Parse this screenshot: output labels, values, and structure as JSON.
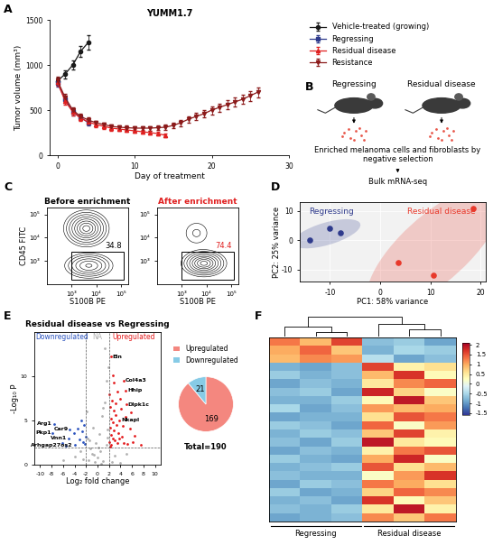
{
  "panel_labels": [
    "A",
    "B",
    "C",
    "D",
    "E",
    "F"
  ],
  "diagram": {
    "groups": [
      "Regressing",
      "Residual disease"
    ],
    "process": "Enriched melanoma cells and fibroblasts by negative selection",
    "readout": "Bulk mRNA-seq"
  },
  "chart_data": [
    {
      "type": "line",
      "title": "YUMM1.7",
      "xlabel": "Day of treatment",
      "ylabel": "Tumor volume (mm³)",
      "xlim": [
        -1,
        30
      ],
      "xticks": [
        0,
        10,
        20,
        30
      ],
      "ylim": [
        0,
        1500
      ],
      "yticks": [
        0,
        500,
        1000,
        1500
      ],
      "legend": "upper left",
      "series": [
        {
          "name": "Vehicle-treated (growing)",
          "color": "#1a1a1a",
          "marker": "o",
          "x": [
            0,
            1,
            2,
            3,
            4
          ],
          "values": [
            820,
            900,
            1000,
            1150,
            1250
          ],
          "errors": [
            40,
            45,
            50,
            60,
            80
          ]
        },
        {
          "name": "Regressing",
          "color": "#2e3a8c",
          "marker": "s",
          "x": [
            0,
            1,
            2,
            3,
            4
          ],
          "values": [
            800,
            620,
            480,
            420,
            360
          ],
          "errors": [
            40,
            40,
            35,
            30,
            30
          ]
        },
        {
          "name": "Residual disease",
          "color": "#e02020",
          "marker": "^",
          "x": [
            0,
            1,
            2,
            3,
            4,
            5,
            6,
            7,
            8,
            9,
            10,
            11,
            12,
            13,
            14
          ],
          "values": [
            810,
            600,
            480,
            410,
            370,
            340,
            320,
            300,
            290,
            280,
            270,
            260,
            250,
            240,
            220
          ],
          "errors": [
            40,
            40,
            35,
            30,
            30,
            25,
            25,
            25,
            20,
            20,
            20,
            20,
            20,
            20,
            20
          ]
        },
        {
          "name": "Resistance",
          "color": "#8b1a1a",
          "marker": "v",
          "x": [
            0,
            1,
            2,
            3,
            4,
            5,
            6,
            7,
            8,
            9,
            10,
            11,
            12,
            13,
            14,
            15,
            16,
            17,
            18,
            19,
            20,
            21,
            22,
            23,
            24,
            25,
            26
          ],
          "values": [
            830,
            640,
            500,
            430,
            390,
            360,
            340,
            320,
            310,
            305,
            300,
            300,
            300,
            305,
            310,
            330,
            360,
            400,
            430,
            460,
            500,
            530,
            560,
            590,
            620,
            660,
            700
          ],
          "errors": [
            40,
            40,
            35,
            30,
            30,
            25,
            25,
            25,
            25,
            25,
            25,
            25,
            25,
            25,
            30,
            30,
            35,
            35,
            40,
            40,
            45,
            45,
            50,
            50,
            50,
            55,
            55
          ]
        }
      ]
    },
    {
      "type": "contour",
      "title": "Before enrichment",
      "color": "#000000",
      "xlabel": "S100B PE",
      "ylabel": "CD45 FITC",
      "xlim": [
        2,
        5.3
      ],
      "ylim": [
        2,
        5.3
      ],
      "xticks": [
        {
          "value": 3,
          "label": "10³"
        },
        {
          "value": 4,
          "label": "10⁴"
        },
        {
          "value": 5,
          "label": "10⁵"
        }
      ],
      "yticks": [
        {
          "value": 3,
          "label": "10³"
        },
        {
          "value": 4,
          "label": "10⁴"
        },
        {
          "value": 5,
          "label": "10⁵"
        }
      ],
      "populations": [
        {
          "center": [
            3.6,
            4.4
          ],
          "spread": [
            0.35,
            0.3
          ],
          "weight": 1.0
        },
        {
          "center": [
            3.7,
            2.8
          ],
          "spread": [
            0.4,
            0.22
          ],
          "weight": 0.6
        }
      ],
      "gate": {
        "x": [
          3.0,
          5.1
        ],
        "y": [
          2.2,
          3.4
        ],
        "value": 34.8
      }
    },
    {
      "type": "contour",
      "title": "After enrichment",
      "color": "#e02020",
      "xlabel": "S100B PE",
      "xlim": [
        2,
        5.3
      ],
      "ylim": [
        2,
        5.3
      ],
      "xticks": [
        {
          "value": 3,
          "label": "10³"
        },
        {
          "value": 4,
          "label": "10⁴"
        },
        {
          "value": 5,
          "label": "10⁵"
        }
      ],
      "yticks": [
        {
          "value": 3,
          "label": "10³"
        },
        {
          "value": 4,
          "label": "10⁴"
        },
        {
          "value": 5,
          "label": "10⁵"
        }
      ],
      "populations": [
        {
          "center": [
            3.9,
            2.9
          ],
          "spread": [
            0.35,
            0.22
          ],
          "weight": 1.0
        },
        {
          "center": [
            3.6,
            4.2
          ],
          "spread": [
            0.3,
            0.3
          ],
          "weight": 0.08
        }
      ],
      "gate": {
        "x": [
          3.0,
          5.1
        ],
        "y": [
          2.2,
          3.4
        ],
        "value": 74.4
      }
    },
    {
      "type": "scatter",
      "xlabel": "PC1: 58% variance",
      "ylabel": "PC2: 25% variance",
      "xlim": [
        -16,
        21
      ],
      "xticks": [
        -10,
        0,
        10,
        20
      ],
      "ylim": [
        -14,
        13
      ],
      "yticks": [
        -10,
        0,
        10
      ],
      "series": [
        {
          "name": "Regressing",
          "color": "#2e3a8c",
          "x": [
            -14,
            -10,
            -8
          ],
          "values": [
            0,
            4.2,
            2.5
          ]
        },
        {
          "name": "Residual disease",
          "color": "#e8392b",
          "x": [
            3.5,
            10.5,
            18.5
          ],
          "values": [
            -7.5,
            -12,
            11
          ]
        }
      ]
    },
    {
      "type": "volcano",
      "title": "Residual disease vs Regressing",
      "xlabel": "Log₂ fold change",
      "ylabel": "-Log₁₀ P",
      "xlim": [
        -11,
        11
      ],
      "xticks": [
        -10,
        -8,
        -6,
        -4,
        -2,
        0,
        2,
        4,
        6,
        8,
        10
      ],
      "ylim": [
        0,
        15
      ],
      "yticks": [
        0,
        5,
        10
      ],
      "cutoffs": {
        "x": [
          -2,
          2
        ],
        "y": 1.9
      },
      "series": [
        {
          "name": "Downregulated",
          "color": "#2a52be",
          "x": [
            -7.6,
            -7.8,
            -4.8,
            -5.0,
            -4.0,
            -2.3,
            -2.6,
            -3.1,
            -2.2,
            -5.5,
            -2.8,
            -3.4,
            -2.5,
            -6.2,
            -2.1,
            -4.1
          ],
          "values": [
            4.6,
            3.6,
            4.0,
            3.0,
            2.2,
            4.5,
            3.8,
            2.9,
            2.3,
            2.1,
            5.0,
            4.1,
            2.6,
            2.4,
            3.2,
            3.6
          ]
        },
        {
          "name": "NA",
          "color": "#b0b0b0",
          "x": [
            -1.5,
            -1.0,
            -0.5,
            0.0,
            0.5,
            1.0,
            1.5,
            -1.8,
            1.8,
            0.8,
            -0.3,
            1.2,
            0.3,
            -1.2,
            1.6,
            -0.8,
            0.6,
            -2.5,
            3.0,
            -4.0,
            5.0,
            -6.0,
            1.9,
            -1.9,
            0.2,
            2.5,
            -3.0,
            4.0,
            1.3,
            -1.4,
            0.9,
            -0.6,
            1.7
          ],
          "values": [
            0.5,
            1.2,
            0.3,
            0.8,
            1.5,
            0.4,
            2.2,
            3.0,
            4.0,
            5.5,
            2.5,
            7.0,
            3.5,
            1.8,
            9.5,
            4.2,
            0.1,
            0.6,
            1.0,
            0.9,
            1.2,
            0.5,
            11.0,
            6.0,
            1.9,
            0.3,
            1.5,
            0.2,
            13.2,
            2.8,
            6.4,
            1.1,
            3.1
          ]
        },
        {
          "name": "Upregulated",
          "color": "#e41a1c",
          "x": [
            2.3,
            4.6,
            4.9,
            5.0,
            3.8,
            2.1,
            2.5,
            2.2,
            2.8,
            3.1,
            2.4,
            2.6,
            3.3,
            2.2,
            2.9,
            3.6,
            2.3,
            4.2,
            2.7,
            3.0,
            2.1,
            3.5,
            4.5,
            5.2,
            2.4,
            6.1,
            3.9,
            4.1,
            2.9,
            3.4,
            5.6,
            6.4,
            4.8,
            7.5,
            2.6,
            3.2,
            2.2,
            3.7,
            5.8,
            4.4
          ],
          "values": [
            12.2,
            9.5,
            8.4,
            6.8,
            5.0,
            8.0,
            7.2,
            6.5,
            6.1,
            5.6,
            5.2,
            4.8,
            4.5,
            4.2,
            3.9,
            3.6,
            3.4,
            3.2,
            3.0,
            2.8,
            2.6,
            2.5,
            2.4,
            2.3,
            2.2,
            2.6,
            7.5,
            6.3,
            9.3,
            8.3,
            4.1,
            3.3,
            5.4,
            2.2,
            10.1,
            6.9,
            2.0,
            3.0,
            5.9,
            4.4
          ]
        }
      ],
      "annotations": [
        {
          "text": "Eln",
          "x": 2.3,
          "y": 12.2
        },
        {
          "text": "Col4a3",
          "x": 4.6,
          "y": 9.5
        },
        {
          "text": "Hhip",
          "x": 4.9,
          "y": 8.4
        },
        {
          "text": "Dlpk1c",
          "x": 5.0,
          "y": 6.8
        },
        {
          "text": "Nkapl",
          "x": 3.8,
          "y": 5.0
        },
        {
          "text": "Arg1",
          "x": -7.6,
          "y": 4.6
        },
        {
          "text": "Pkp1",
          "x": -7.8,
          "y": 3.6
        },
        {
          "text": "Car9",
          "x": -4.8,
          "y": 4.0
        },
        {
          "text": "Vnn1",
          "x": -5.0,
          "y": 3.0
        },
        {
          "text": "Arhgap27os2",
          "x": -4.0,
          "y": 2.2
        }
      ]
    },
    {
      "type": "pie",
      "categories": [
        "Upregulated",
        "Downregulated"
      ],
      "values": [
        169,
        21
      ],
      "colors": [
        "#f4877f",
        "#87cbe6"
      ],
      "data_labels": true,
      "legend": "lower center",
      "note": "Total=190"
    },
    {
      "type": "heatmap",
      "tick_labels": false,
      "groups": [
        {
          "name": "Regressing",
          "columns": 3
        },
        {
          "name": "Residual disease",
          "columns": 3
        }
      ],
      "dendrogram": [
        [
          1,
          2,
          1.0
        ],
        [
          0,
          6,
          2.0
        ],
        [
          4,
          5,
          1.5
        ],
        [
          3,
          8,
          2.5
        ],
        [
          7,
          9,
          4.0
        ]
      ],
      "colorbar": {
        "range": [
          -1.6,
          2.1
        ],
        "ticks": [
          -1.5,
          -1,
          -0.5,
          0,
          0.5,
          1,
          1.5,
          2
        ]
      },
      "cells": [
        [
          1.3,
          0.9,
          1.6,
          -0.7,
          -0.6,
          -0.9
        ],
        [
          1.0,
          1.4,
          0.8,
          -0.8,
          -0.5,
          -0.6
        ],
        [
          0.9,
          1.2,
          1.1,
          -0.4,
          -0.9,
          -0.7
        ],
        [
          -0.8,
          -0.9,
          -0.7,
          1.6,
          0.4,
          0.6
        ],
        [
          -0.6,
          -0.8,
          -0.7,
          0.9,
          1.7,
          0.3
        ],
        [
          -0.9,
          -0.7,
          -0.8,
          0.5,
          1.2,
          1.4
        ],
        [
          -0.7,
          -0.6,
          -0.9,
          1.8,
          0.7,
          0.2
        ],
        [
          -0.8,
          -0.8,
          -0.6,
          0.3,
          1.9,
          0.8
        ],
        [
          -0.5,
          -0.9,
          -0.7,
          1.1,
          0.9,
          1.0
        ],
        [
          -0.9,
          -0.8,
          -0.8,
          0.6,
          1.5,
          1.3
        ],
        [
          -0.6,
          -0.7,
          -0.9,
          1.4,
          0.2,
          1.1
        ],
        [
          -0.8,
          -0.6,
          -0.7,
          0.8,
          1.6,
          0.4
        ],
        [
          -0.7,
          -0.9,
          -0.6,
          1.9,
          0.5,
          0.3
        ],
        [
          -0.9,
          -0.7,
          -0.8,
          0.4,
          1.3,
          1.5
        ],
        [
          -0.6,
          -0.8,
          -0.9,
          1.0,
          1.8,
          0.2
        ],
        [
          -0.8,
          -0.7,
          -0.6,
          1.5,
          0.6,
          0.9
        ],
        [
          -0.7,
          -0.8,
          -0.8,
          0.2,
          1.1,
          1.7
        ],
        [
          -0.9,
          -0.6,
          -0.7,
          1.3,
          1.0,
          0.6
        ],
        [
          -0.6,
          -0.9,
          -0.8,
          0.7,
          1.4,
          1.2
        ],
        [
          -0.8,
          -0.7,
          -0.9,
          1.7,
          0.3,
          0.8
        ],
        [
          -0.7,
          -0.8,
          -0.6,
          0.5,
          1.9,
          0.4
        ],
        [
          -0.9,
          -0.8,
          -0.7,
          1.2,
          0.8,
          1.3
        ]
      ]
    }
  ]
}
